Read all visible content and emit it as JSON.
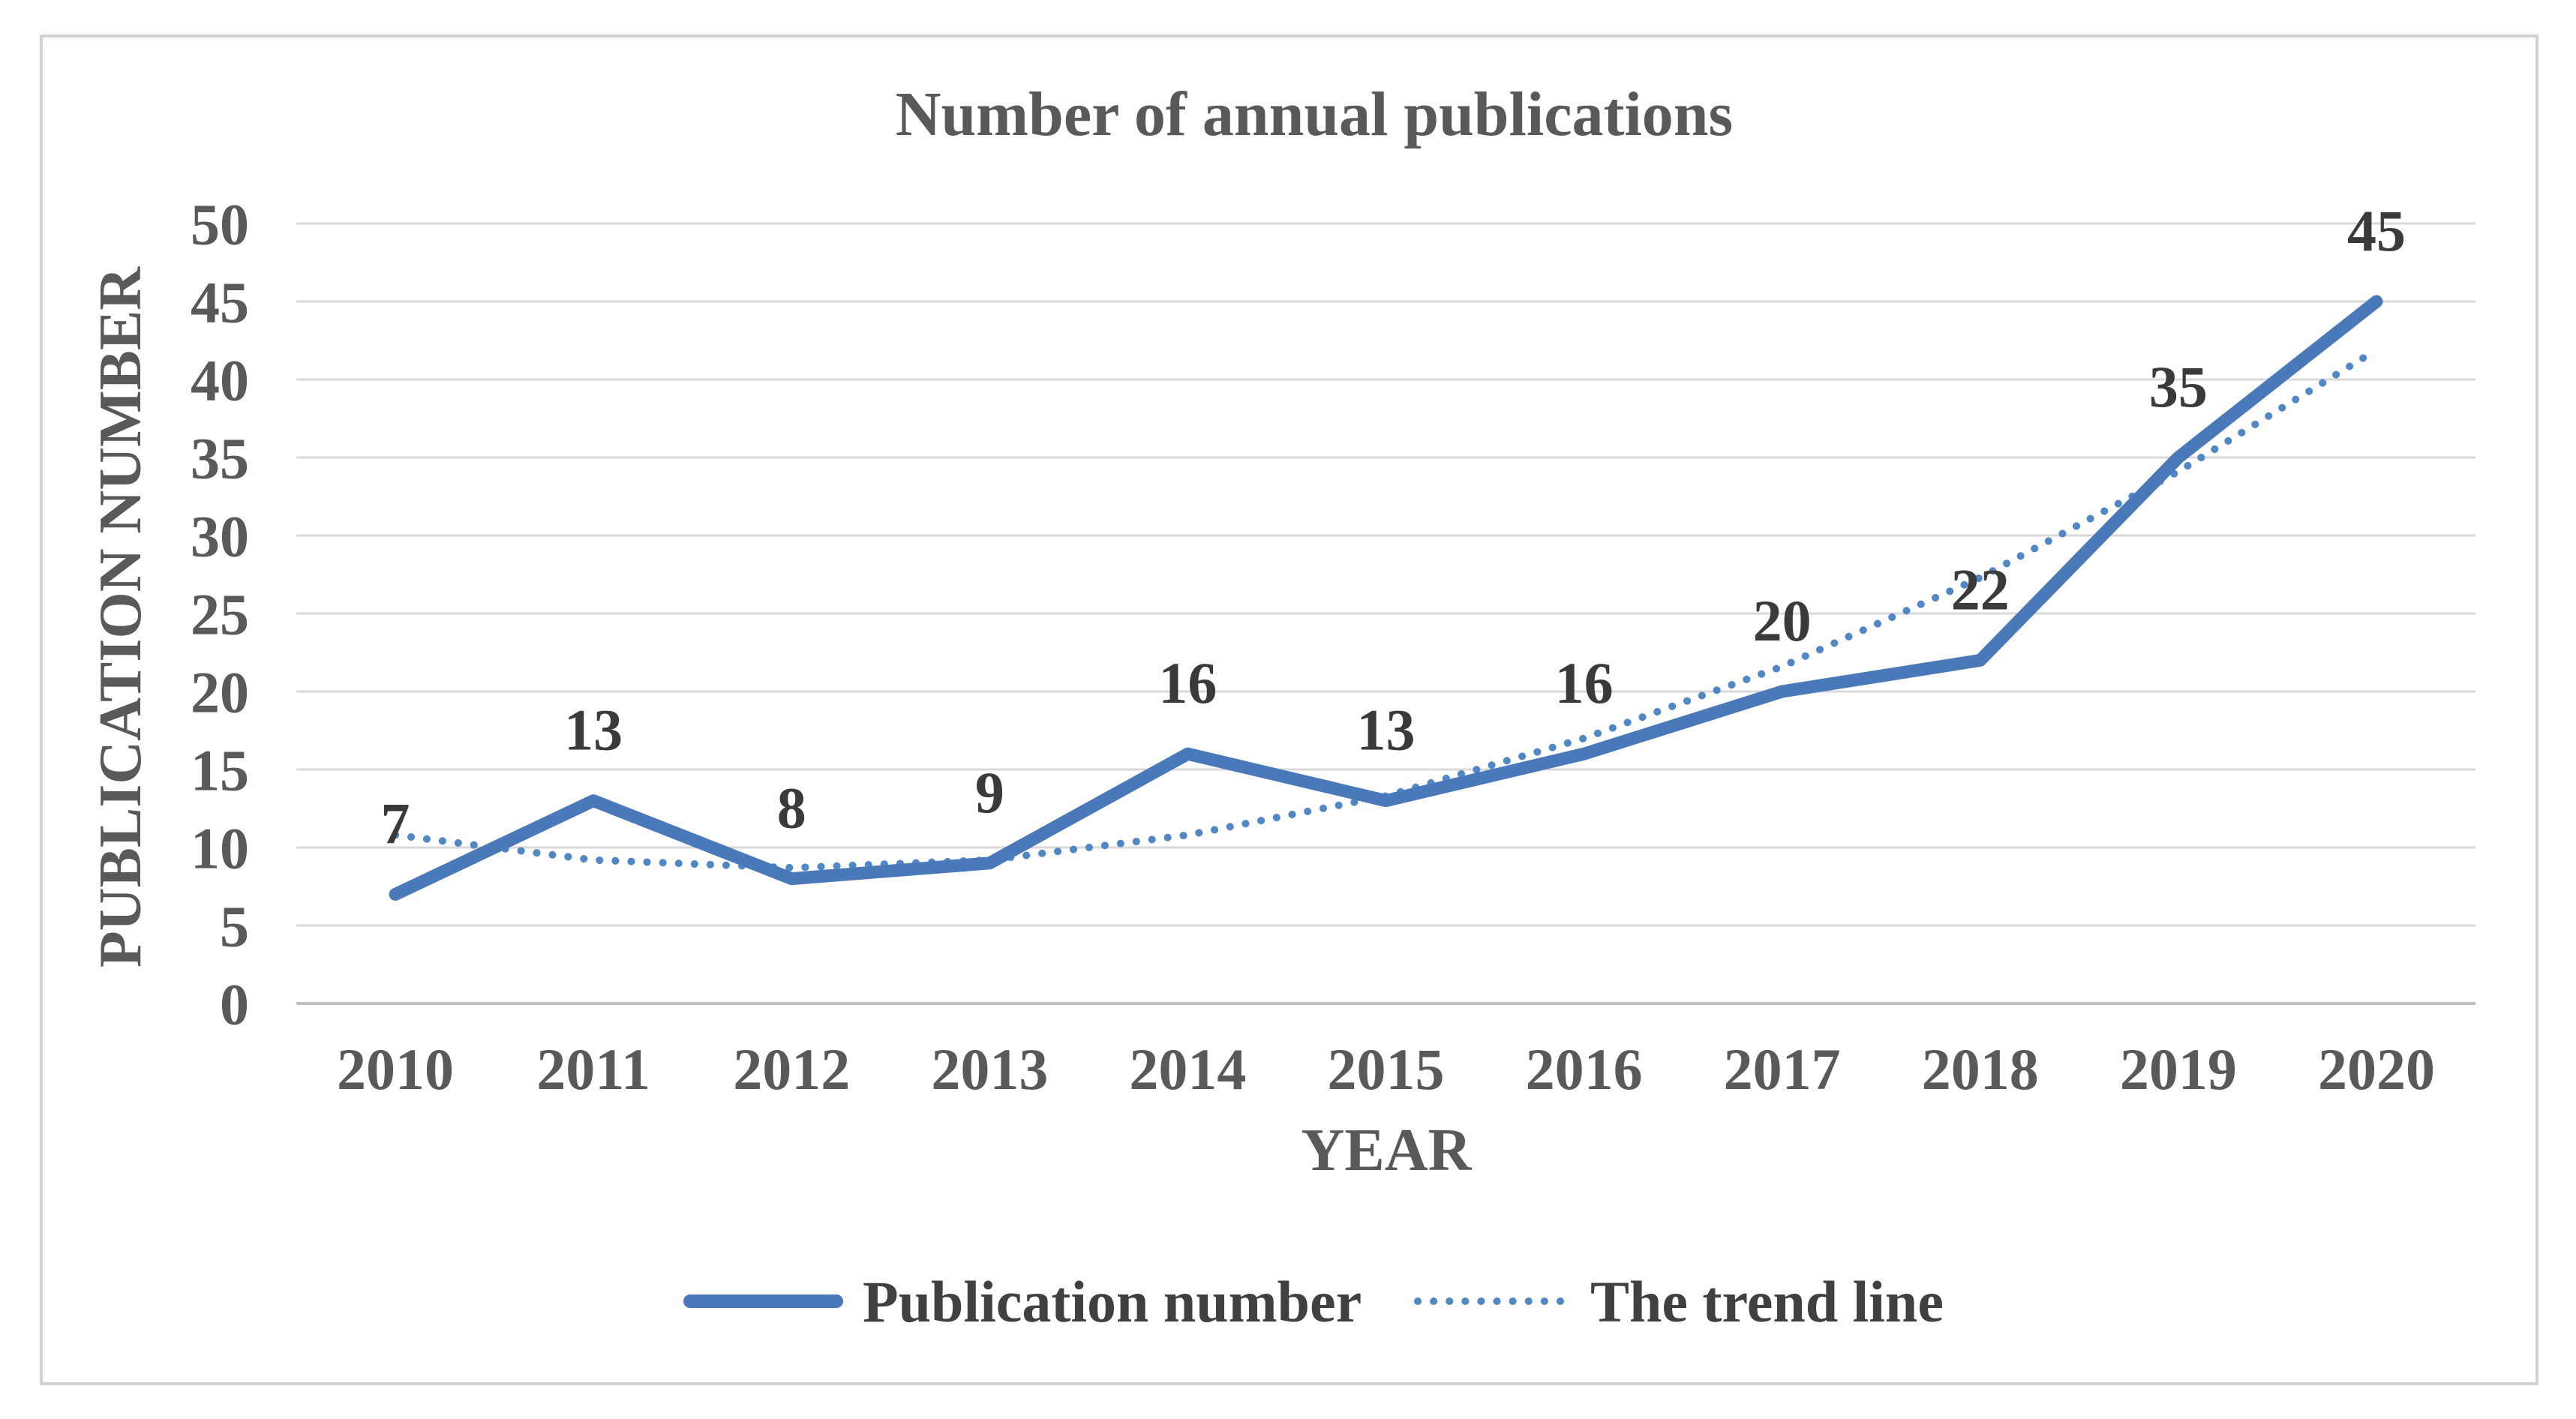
{
  "chart_data": {
    "type": "line",
    "title": "Number of annual publications",
    "xlabel": "YEAR",
    "ylabel": "PUBLICATION NUMBER",
    "categories": [
      "2010",
      "2011",
      "2012",
      "2013",
      "2014",
      "2015",
      "2016",
      "2017",
      "2018",
      "2019",
      "2020"
    ],
    "series": [
      {
        "name": "Publication number",
        "style": "solid",
        "values": [
          7,
          13,
          8,
          9,
          16,
          13,
          16,
          20,
          22,
          35,
          45
        ],
        "data_labels": [
          "7",
          "13",
          "8",
          "9",
          "16",
          "13",
          "16",
          "20",
          "22",
          "35",
          "45"
        ]
      },
      {
        "name": "The trend line",
        "style": "dotted",
        "values": [
          10.8,
          9.2,
          8.7,
          9.2,
          10.8,
          13.3,
          17.0,
          21.6,
          27.3,
          34.1,
          41.9
        ],
        "data_labels": null
      }
    ],
    "ylim": [
      0,
      50
    ],
    "yticks": [
      0,
      5,
      10,
      15,
      20,
      25,
      30,
      35,
      40,
      45,
      50
    ],
    "grid": "horizontal",
    "legend_position": "bottom",
    "colors": {
      "line": "#4A79BA",
      "trend": "#5287C5",
      "grid": "#D9D9D9",
      "axis_line": "#BFBFBF",
      "text": "#595959",
      "data_label": "#3A3A3A",
      "legend_text": "#404040",
      "border": "#D2D2D2",
      "background": "#FFFFFF"
    }
  }
}
